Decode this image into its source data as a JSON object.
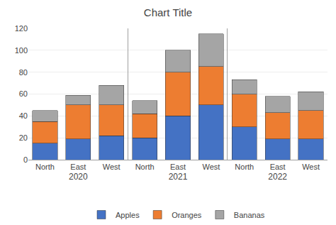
{
  "chart_data": [
    {
      "type": "bar",
      "title": "Chart Title",
      "xlabel": "2020",
      "stacked": true,
      "categories": [
        "North",
        "East",
        "West"
      ],
      "series": [
        {
          "name": "Apples",
          "color": "#4472c4",
          "values": [
            15,
            19,
            22
          ]
        },
        {
          "name": "Oranges",
          "color": "#ed7d31",
          "values": [
            20,
            31,
            28
          ]
        },
        {
          "name": "Bananas",
          "color": "#a5a5a5",
          "values": [
            10,
            9,
            18
          ]
        }
      ],
      "ylim": [
        0,
        120
      ],
      "yticks": [
        0,
        20,
        40,
        60,
        80,
        100,
        120
      ],
      "grid": true,
      "legend": "bottom"
    },
    {
      "type": "bar",
      "xlabel": "2021",
      "stacked": true,
      "categories": [
        "North",
        "East",
        "West"
      ],
      "series": [
        {
          "name": "Apples",
          "color": "#4472c4",
          "values": [
            20,
            40,
            50
          ]
        },
        {
          "name": "Oranges",
          "color": "#ed7d31",
          "values": [
            22,
            40,
            35
          ]
        },
        {
          "name": "Bananas",
          "color": "#a5a5a5",
          "values": [
            12,
            20,
            30
          ]
        }
      ],
      "ylim": [
        0,
        120
      ],
      "yticks": [
        0,
        20,
        40,
        60,
        80,
        100,
        120
      ],
      "grid": true,
      "tick_labels": "x"
    },
    {
      "type": "bar",
      "xlabel": "2022",
      "stacked": true,
      "categories": [
        "North",
        "East",
        "West"
      ],
      "series": [
        {
          "name": "Apples",
          "color": "#4472c4",
          "values": [
            30,
            19,
            19
          ]
        },
        {
          "name": "Oranges",
          "color": "#ed7d31",
          "values": [
            30,
            24,
            26
          ]
        },
        {
          "name": "Bananas",
          "color": "#a5a5a5",
          "values": [
            13,
            15,
            17
          ]
        }
      ],
      "ylim": [
        0,
        120
      ],
      "yticks": [
        0,
        20,
        40,
        60,
        80,
        100,
        120
      ],
      "grid": true,
      "tick_labels": "x"
    }
  ]
}
